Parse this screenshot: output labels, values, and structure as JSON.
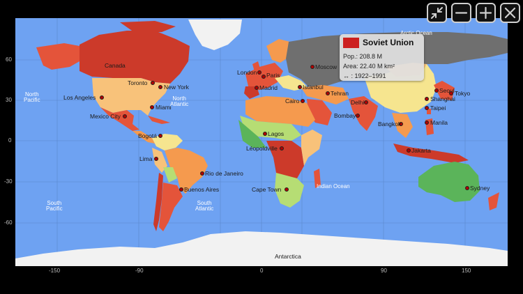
{
  "map": {
    "colors": {
      "ocean": "#6ea2f2",
      "no_data": "#6f6f6f",
      "ice": "#f2f2f2",
      "deep_red": "#cc3a2a",
      "red": "#e4543a",
      "orange": "#f59a4e",
      "light_orange": "#f8c27a",
      "yellow": "#f6e58f",
      "light_green": "#b6dd74",
      "green": "#5bb45a"
    },
    "x_ticks": [
      "-150",
      "-90",
      "0",
      "90",
      "150"
    ],
    "y_ticks": [
      "60",
      "30",
      "0",
      "-30",
      "-60"
    ],
    "oceans": [
      {
        "name": "north-pacific",
        "text": "North\nPacific"
      },
      {
        "name": "north-atlantic",
        "text": "North\nAtlantic"
      },
      {
        "name": "south-pacific",
        "text": "South\nPacific"
      },
      {
        "name": "south-atlantic",
        "text": "South\nAtlantic"
      },
      {
        "name": "indian-ocean",
        "text": "Indian Ocean"
      },
      {
        "name": "arctic-ocean",
        "text": "Arctic Ocean"
      }
    ],
    "region_labels": {
      "canada": "Canada",
      "antarctica": "Antarctica"
    },
    "cities": [
      {
        "name": "Toronto"
      },
      {
        "name": "New York"
      },
      {
        "name": "Los Angeles"
      },
      {
        "name": "Miami"
      },
      {
        "name": "Mexico City"
      },
      {
        "name": "Bogotá"
      },
      {
        "name": "Lima"
      },
      {
        "name": "Rio de Janeiro"
      },
      {
        "name": "Buenos Aires"
      },
      {
        "name": "London"
      },
      {
        "name": "Paris"
      },
      {
        "name": "Madrid"
      },
      {
        "name": "Istanbul"
      },
      {
        "name": "Moscow"
      },
      {
        "name": "Cairo"
      },
      {
        "name": "Lagos"
      },
      {
        "name": "Léopoldville"
      },
      {
        "name": "Cape Town"
      },
      {
        "name": "Tehran"
      },
      {
        "name": "Delhi"
      },
      {
        "name": "Bombay"
      },
      {
        "name": "Bangkok"
      },
      {
        "name": "Jakarta"
      },
      {
        "name": "Seoul"
      },
      {
        "name": "Tokyo"
      },
      {
        "name": "Shanghai"
      },
      {
        "name": "Taipei"
      },
      {
        "name": "Manila"
      },
      {
        "name": "Sydney"
      }
    ]
  },
  "popup": {
    "title": "Soviet Union",
    "population": "Pop.: 208.8 M",
    "area": "Area: 22.40 M km²",
    "years": "↔ : 1922–1991",
    "flag_color": "#cc1f1f"
  },
  "toolbar": {
    "buttons": [
      {
        "name": "shrink-button",
        "icon": "shrink-icon"
      },
      {
        "name": "zoom-out-button",
        "icon": "minus-icon"
      },
      {
        "name": "zoom-in-button",
        "icon": "plus-icon"
      },
      {
        "name": "close-button",
        "icon": "close-icon"
      }
    ]
  }
}
